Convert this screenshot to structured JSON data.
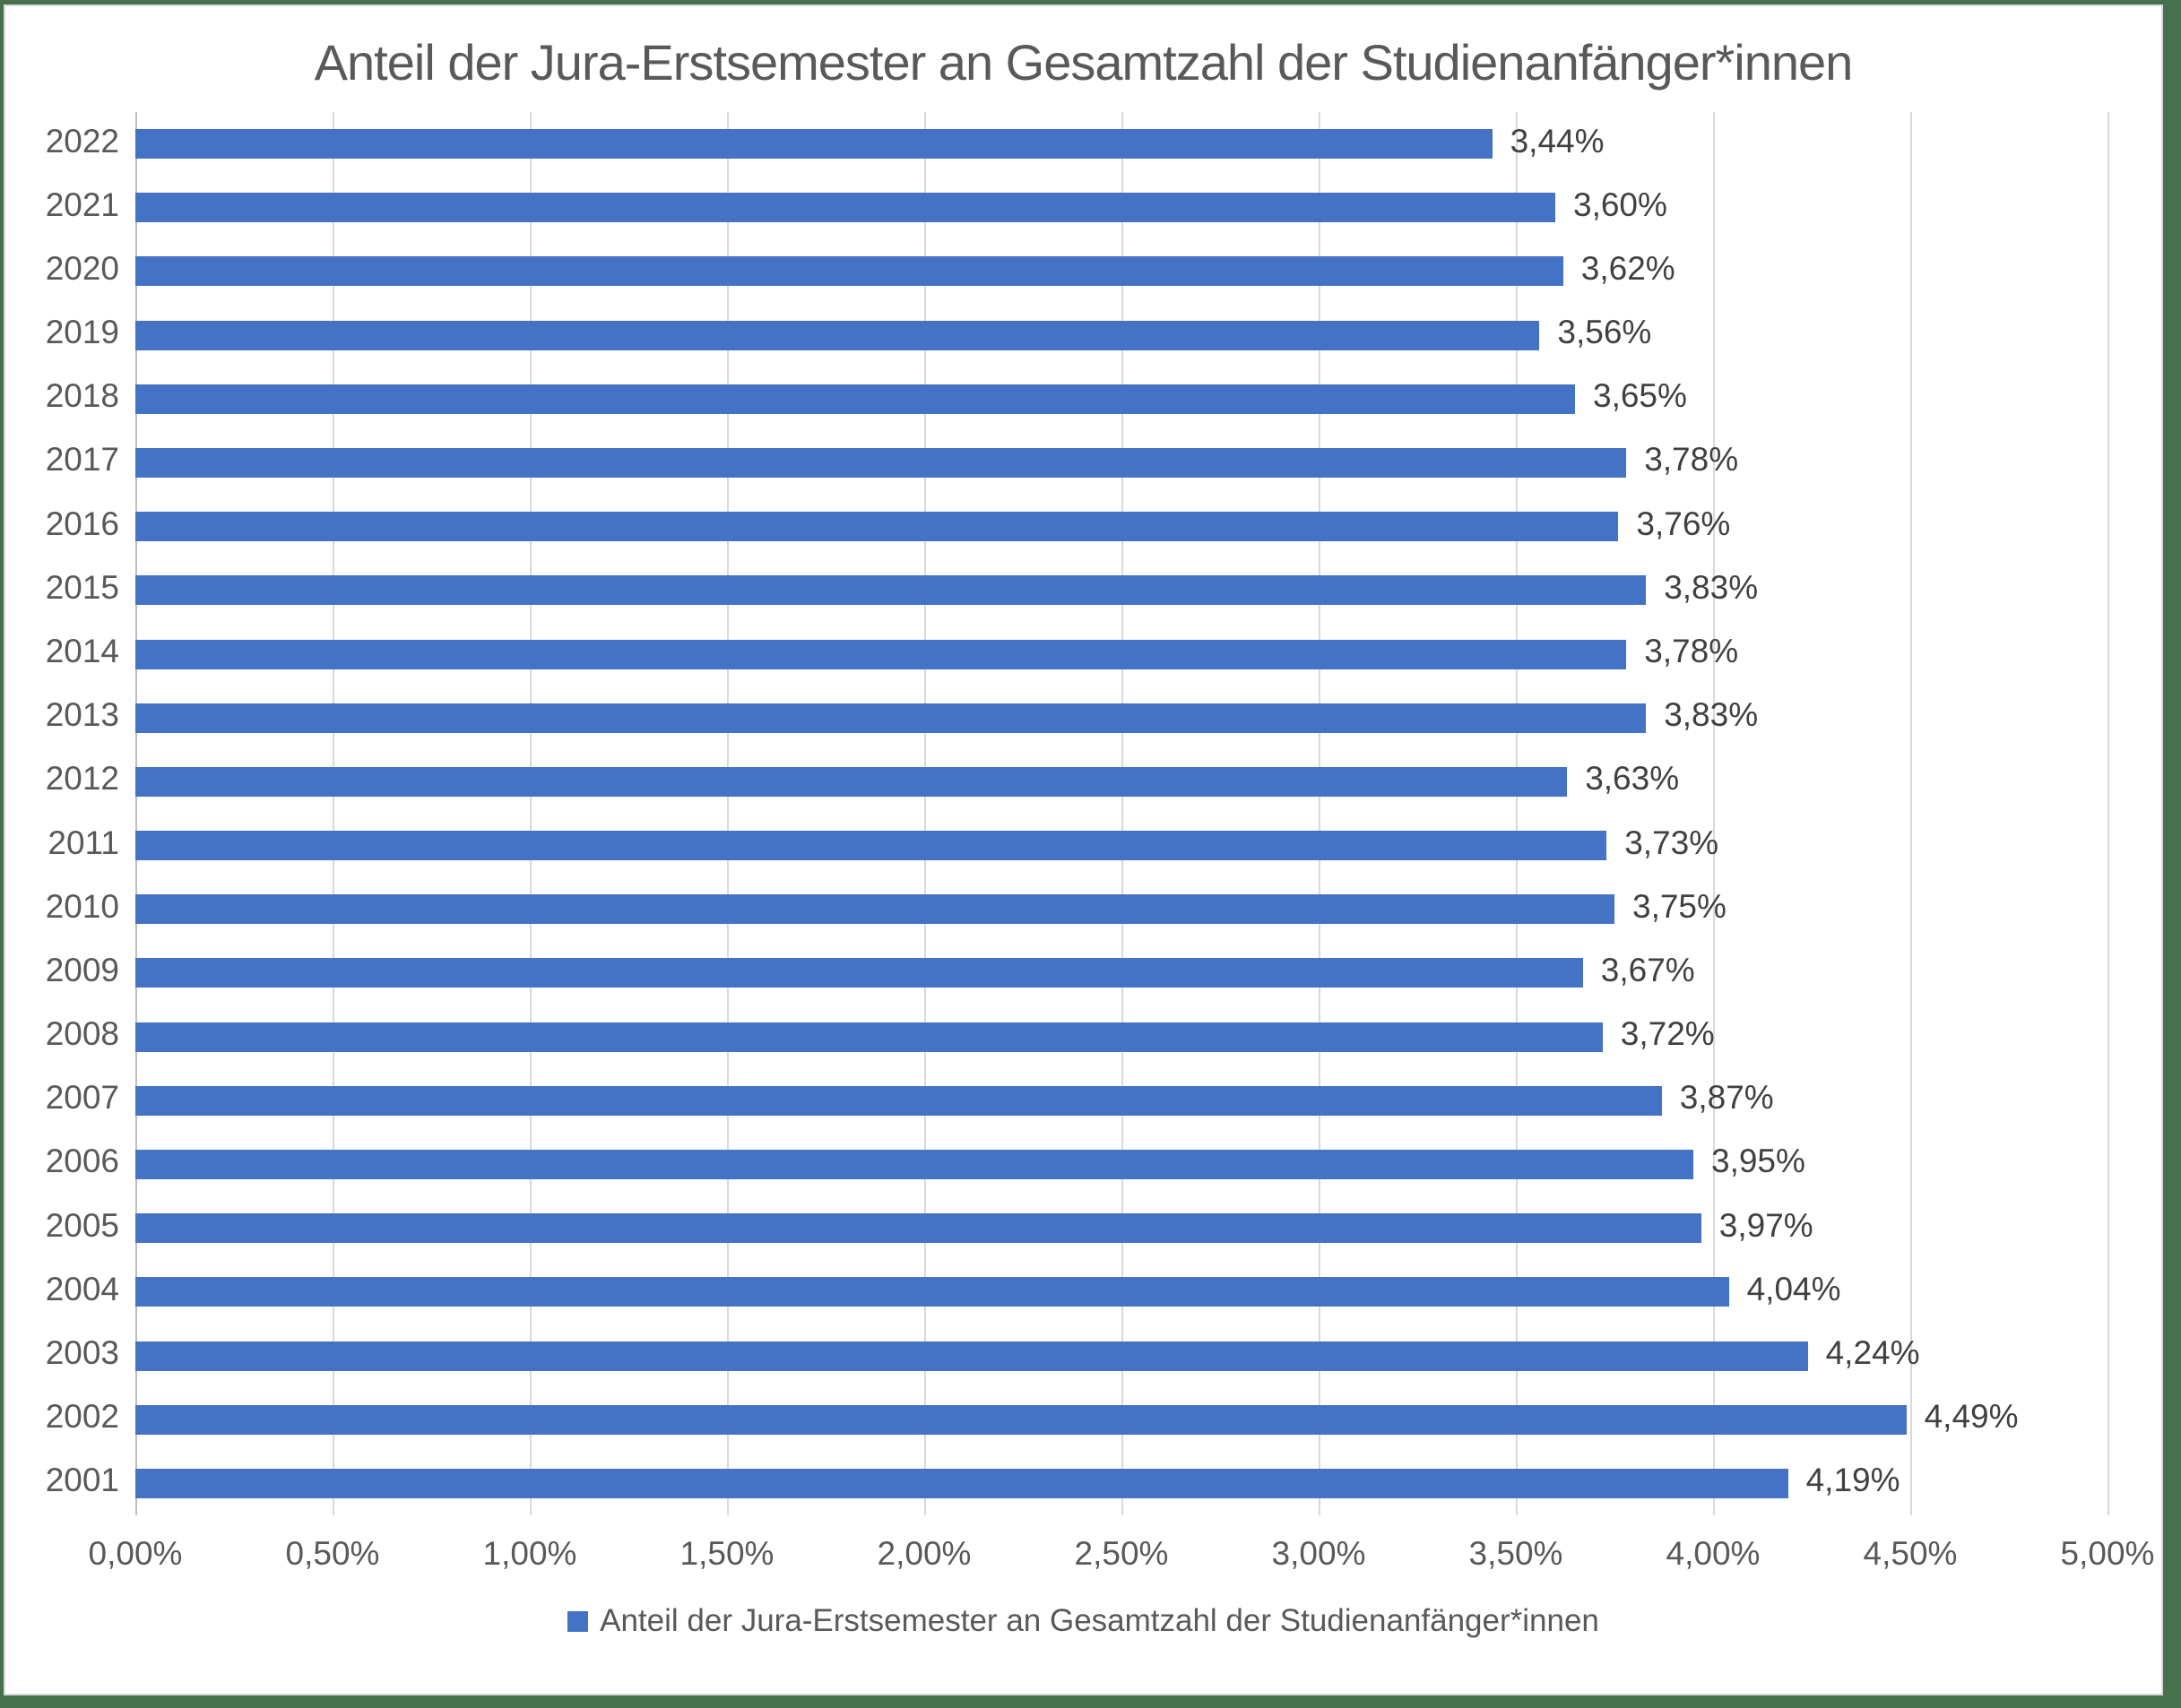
{
  "chart_data": {
    "type": "bar",
    "orientation": "horizontal",
    "title": "Anteil der Jura-Erstsemester an Gesamtzahl der Studienanfänger*innen",
    "categories": [
      "2022",
      "2021",
      "2020",
      "2019",
      "2018",
      "2017",
      "2016",
      "2015",
      "2014",
      "2013",
      "2012",
      "2011",
      "2010",
      "2009",
      "2008",
      "2007",
      "2006",
      "2005",
      "2004",
      "2003",
      "2002",
      "2001"
    ],
    "values": [
      3.44,
      3.6,
      3.62,
      3.56,
      3.65,
      3.78,
      3.76,
      3.83,
      3.78,
      3.83,
      3.63,
      3.73,
      3.75,
      3.67,
      3.72,
      3.87,
      3.95,
      3.97,
      4.04,
      4.24,
      4.49,
      4.19
    ],
    "value_labels": [
      "3,44%",
      "3,60%",
      "3,62%",
      "3,56%",
      "3,65%",
      "3,78%",
      "3,76%",
      "3,83%",
      "3,78%",
      "3,83%",
      "3,63%",
      "3,73%",
      "3,75%",
      "3,67%",
      "3,72%",
      "3,87%",
      "3,95%",
      "3,97%",
      "4,04%",
      "4,24%",
      "4,49%",
      "4,19%"
    ],
    "x_ticks": [
      "0,00%",
      "0,50%",
      "1,00%",
      "1,50%",
      "2,00%",
      "2,50%",
      "3,00%",
      "3,50%",
      "4,00%",
      "4,50%",
      "5,00%"
    ],
    "xlim": [
      0,
      5
    ],
    "grid": true,
    "legend_position": "bottom",
    "legend_label": "Anteil der Jura-Erstsemester an Gesamtzahl der Studienanfänger*innen",
    "colors": {
      "bar": "#4472C4",
      "title_text": "#595959",
      "axis_text": "#595959",
      "value_text": "#404040",
      "gridline": "#D9D9D9",
      "frame_border": "#47714D"
    }
  }
}
